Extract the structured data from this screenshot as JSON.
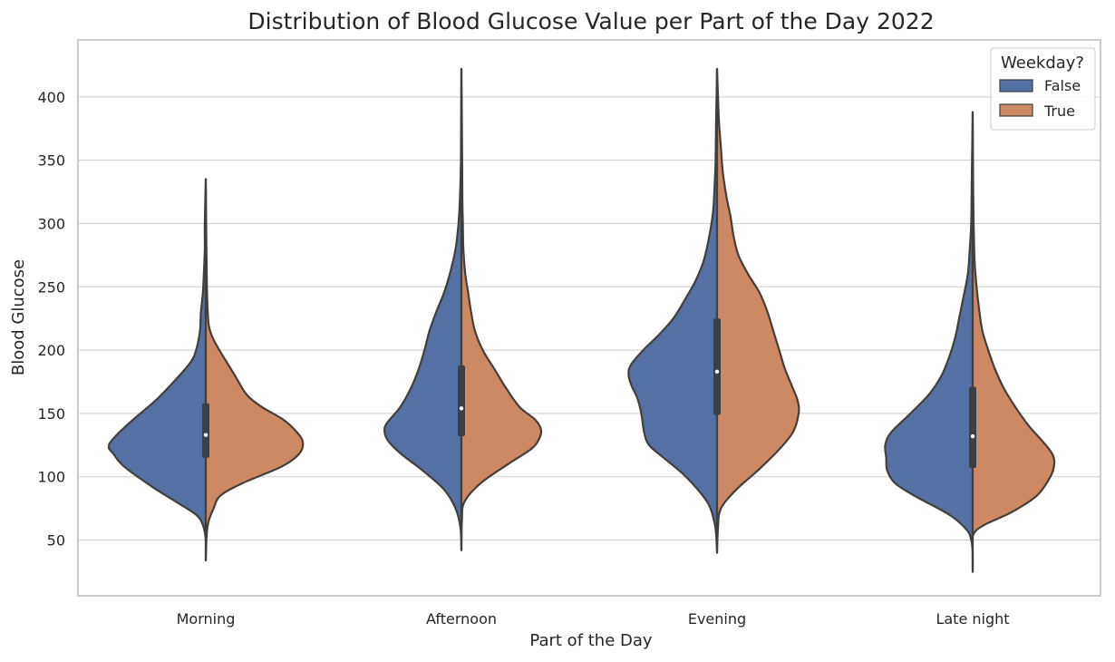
{
  "chart_data": {
    "type": "violin",
    "split": true,
    "title": "Distribution of Blood Glucose Value per Part of the Day 2022",
    "xlabel": "Part of the Day",
    "ylabel": "Blood Glucose",
    "categories": [
      "Morning",
      "Afternoon",
      "Evening",
      "Late night"
    ],
    "ylim": [
      6,
      445
    ],
    "yticks": [
      50,
      100,
      150,
      200,
      250,
      300,
      350,
      400
    ],
    "grid": true,
    "legend": {
      "title": "Weekday?",
      "position": "top-right"
    },
    "series": [
      {
        "name": "False",
        "color": "#5471a6",
        "side": "left",
        "profiles": [
          [
            [
              34,
              0
            ],
            [
              50,
              0
            ],
            [
              62,
              0.03
            ],
            [
              70,
              0.1
            ],
            [
              80,
              0.3
            ],
            [
              92,
              0.55
            ],
            [
              108,
              0.84
            ],
            [
              118,
              0.95
            ],
            [
              124,
              1.0
            ],
            [
              132,
              0.93
            ],
            [
              145,
              0.75
            ],
            [
              160,
              0.52
            ],
            [
              175,
              0.33
            ],
            [
              190,
              0.16
            ],
            [
              200,
              0.1
            ],
            [
              215,
              0.06
            ],
            [
              230,
              0.05
            ],
            [
              245,
              0.03
            ],
            [
              260,
              0.02
            ],
            [
              280,
              0.01
            ],
            [
              300,
              0.01
            ],
            [
              335,
              0
            ]
          ],
          [
            [
              42,
              0
            ],
            [
              60,
              0.01
            ],
            [
              75,
              0.06
            ],
            [
              90,
              0.18
            ],
            [
              105,
              0.4
            ],
            [
              118,
              0.62
            ],
            [
              128,
              0.75
            ],
            [
              135,
              0.79
            ],
            [
              142,
              0.77
            ],
            [
              155,
              0.63
            ],
            [
              170,
              0.52
            ],
            [
              185,
              0.44
            ],
            [
              200,
              0.38
            ],
            [
              215,
              0.33
            ],
            [
              230,
              0.26
            ],
            [
              245,
              0.18
            ],
            [
              260,
              0.12
            ],
            [
              280,
              0.06
            ],
            [
              300,
              0.03
            ],
            [
              320,
              0.015
            ],
            [
              350,
              0.005
            ],
            [
              380,
              0.003
            ],
            [
              422,
              0
            ]
          ],
          [
            [
              40,
              0
            ],
            [
              55,
              0.01
            ],
            [
              65,
              0.03
            ],
            [
              80,
              0.1
            ],
            [
              100,
              0.32
            ],
            [
              115,
              0.55
            ],
            [
              125,
              0.7
            ],
            [
              135,
              0.75
            ],
            [
              150,
              0.78
            ],
            [
              162,
              0.82
            ],
            [
              172,
              0.88
            ],
            [
              180,
              0.91
            ],
            [
              188,
              0.89
            ],
            [
              200,
              0.76
            ],
            [
              212,
              0.6
            ],
            [
              225,
              0.45
            ],
            [
              240,
              0.33
            ],
            [
              255,
              0.22
            ],
            [
              270,
              0.14
            ],
            [
              290,
              0.08
            ],
            [
              310,
              0.04
            ],
            [
              330,
              0.025
            ],
            [
              350,
              0.015
            ],
            [
              380,
              0.01
            ],
            [
              400,
              0.005
            ],
            [
              422,
              0
            ]
          ],
          [
            [
              25,
              0
            ],
            [
              40,
              0
            ],
            [
              50,
              0.015
            ],
            [
              58,
              0.06
            ],
            [
              70,
              0.24
            ],
            [
              85,
              0.6
            ],
            [
              95,
              0.8
            ],
            [
              105,
              0.88
            ],
            [
              115,
              0.89
            ],
            [
              125,
              0.9
            ],
            [
              135,
              0.84
            ],
            [
              150,
              0.64
            ],
            [
              165,
              0.45
            ],
            [
              180,
              0.32
            ],
            [
              195,
              0.24
            ],
            [
              210,
              0.18
            ],
            [
              225,
              0.14
            ],
            [
              240,
              0.1
            ],
            [
              260,
              0.05
            ],
            [
              280,
              0.03
            ],
            [
              300,
              0.015
            ],
            [
              330,
              0.01
            ],
            [
              388,
              0
            ]
          ]
        ]
      },
      {
        "name": "True",
        "color": "#cc8963",
        "side": "right",
        "profiles": [
          [
            [
              34,
              0
            ],
            [
              55,
              0.01
            ],
            [
              65,
              0.03
            ],
            [
              75,
              0.08
            ],
            [
              85,
              0.15
            ],
            [
              95,
              0.38
            ],
            [
              108,
              0.78
            ],
            [
              118,
              0.96
            ],
            [
              127,
              1.0
            ],
            [
              135,
              0.94
            ],
            [
              145,
              0.8
            ],
            [
              155,
              0.58
            ],
            [
              165,
              0.42
            ],
            [
              180,
              0.3
            ],
            [
              190,
              0.22
            ],
            [
              200,
              0.14
            ],
            [
              210,
              0.07
            ],
            [
              220,
              0.03
            ],
            [
              240,
              0.015
            ],
            [
              260,
              0.01
            ],
            [
              290,
              0.005
            ],
            [
              335,
              0
            ]
          ],
          [
            [
              42,
              0
            ],
            [
              65,
              0.005
            ],
            [
              80,
              0.03
            ],
            [
              95,
              0.2
            ],
            [
              110,
              0.48
            ],
            [
              122,
              0.72
            ],
            [
              130,
              0.8
            ],
            [
              137,
              0.82
            ],
            [
              145,
              0.76
            ],
            [
              155,
              0.6
            ],
            [
              170,
              0.46
            ],
            [
              185,
              0.34
            ],
            [
              200,
              0.22
            ],
            [
              215,
              0.14
            ],
            [
              230,
              0.1
            ],
            [
              245,
              0.07
            ],
            [
              260,
              0.04
            ],
            [
              280,
              0.02
            ],
            [
              300,
              0.015
            ],
            [
              320,
              0.01
            ],
            [
              380,
              0.005
            ],
            [
              422,
              0
            ]
          ],
          [
            [
              40,
              0
            ],
            [
              60,
              0.01
            ],
            [
              75,
              0.04
            ],
            [
              90,
              0.2
            ],
            [
              105,
              0.42
            ],
            [
              120,
              0.62
            ],
            [
              135,
              0.78
            ],
            [
              150,
              0.84
            ],
            [
              160,
              0.83
            ],
            [
              170,
              0.78
            ],
            [
              185,
              0.7
            ],
            [
              200,
              0.64
            ],
            [
              215,
              0.58
            ],
            [
              230,
              0.52
            ],
            [
              245,
              0.44
            ],
            [
              260,
              0.32
            ],
            [
              275,
              0.22
            ],
            [
              290,
              0.17
            ],
            [
              305,
              0.14
            ],
            [
              320,
              0.1
            ],
            [
              340,
              0.06
            ],
            [
              360,
              0.04
            ],
            [
              380,
              0.02
            ],
            [
              400,
              0.01
            ],
            [
              422,
              0
            ]
          ],
          [
            [
              25,
              0
            ],
            [
              45,
              0
            ],
            [
              55,
              0.01
            ],
            [
              62,
              0.12
            ],
            [
              72,
              0.4
            ],
            [
              85,
              0.66
            ],
            [
              100,
              0.8
            ],
            [
              110,
              0.84
            ],
            [
              118,
              0.82
            ],
            [
              128,
              0.72
            ],
            [
              140,
              0.58
            ],
            [
              155,
              0.44
            ],
            [
              170,
              0.32
            ],
            [
              185,
              0.23
            ],
            [
              200,
              0.16
            ],
            [
              215,
              0.1
            ],
            [
              230,
              0.07
            ],
            [
              250,
              0.04
            ],
            [
              270,
              0.02
            ],
            [
              300,
              0.01
            ],
            [
              330,
              0.005
            ],
            [
              388,
              0
            ]
          ]
        ]
      }
    ],
    "box": [
      {
        "q1": 115,
        "median": 133,
        "q3": 158,
        "whisker_low": 62,
        "whisker_high": 290
      },
      {
        "q1": 132,
        "median": 154,
        "q3": 188,
        "whisker_low": 60,
        "whisker_high": 330
      },
      {
        "q1": 149,
        "median": 183,
        "q3": 225,
        "whisker_low": 60,
        "whisker_high": 370
      },
      {
        "q1": 107,
        "median": 132,
        "q3": 171,
        "whisker_low": 50,
        "whisker_high": 265
      }
    ]
  }
}
